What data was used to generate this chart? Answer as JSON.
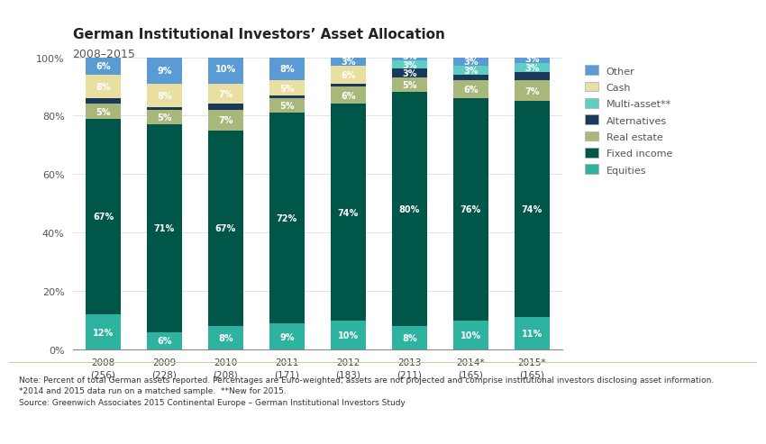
{
  "title": "German Institutional Investors’ Asset Allocation",
  "subtitle": "2008–2015",
  "categories": [
    "2008\n(256)",
    "2009\n(228)",
    "2010\n(208)",
    "2011\n(171)",
    "2012\n(183)",
    "2013\n(211)",
    "2014*\n(165)",
    "2015*\n(165)"
  ],
  "series": {
    "Equities": [
      12,
      6,
      8,
      9,
      10,
      8,
      10,
      11
    ],
    "Fixed income": [
      67,
      71,
      67,
      72,
      74,
      80,
      76,
      74
    ],
    "Real estate": [
      5,
      5,
      7,
      5,
      6,
      5,
      6,
      7
    ],
    "Alternatives": [
      2,
      1,
      2,
      1,
      1,
      3,
      2,
      3
    ],
    "Multi-asset**": [
      0,
      0,
      0,
      0,
      0,
      3,
      3,
      3
    ],
    "Cash": [
      8,
      8,
      7,
      5,
      6,
      0,
      0,
      0
    ],
    "Other": [
      6,
      9,
      10,
      8,
      3,
      3,
      3,
      3
    ]
  },
  "colors": {
    "Equities": "#2db3a0",
    "Fixed income": "#005648",
    "Real estate": "#a8b87a",
    "Alternatives": "#1a3a5c",
    "Multi-asset**": "#5ecec4",
    "Cash": "#e8dfa0",
    "Other": "#5b9bd5"
  },
  "bar_labels": {
    "Equities": [
      true,
      true,
      true,
      true,
      true,
      true,
      true,
      true
    ],
    "Fixed income": [
      true,
      true,
      true,
      true,
      true,
      true,
      true,
      true
    ],
    "Real estate": [
      true,
      true,
      true,
      true,
      true,
      true,
      true,
      true
    ],
    "Alternatives": [
      false,
      false,
      false,
      false,
      false,
      true,
      false,
      false
    ],
    "Multi-asset**": [
      false,
      false,
      false,
      false,
      false,
      true,
      true,
      true
    ],
    "Cash": [
      true,
      true,
      true,
      true,
      true,
      false,
      false,
      false
    ],
    "Other": [
      true,
      true,
      true,
      true,
      true,
      true,
      true,
      true
    ]
  },
  "note_line1": "Note: Percent of total German assets reported. Percentages are Euro-weighted; assets are not projected and comprise institutional investors disclosing asset information.",
  "note_line2": "*2014 and 2015 data run on a matched sample.  **New for 2015.",
  "note_line3": "Source: Greenwich Associates 2015 Continental Europe – German Institutional Investors Study",
  "top_bar_color": "#2a6b5a",
  "background_color": "#ffffff",
  "note_bg_color": "#f5f5ee",
  "legend_order": [
    "Other",
    "Cash",
    "Multi-asset**",
    "Alternatives",
    "Real estate",
    "Fixed income",
    "Equities"
  ],
  "layer_order": [
    "Equities",
    "Fixed income",
    "Real estate",
    "Alternatives",
    "Multi-asset**",
    "Cash",
    "Other"
  ]
}
